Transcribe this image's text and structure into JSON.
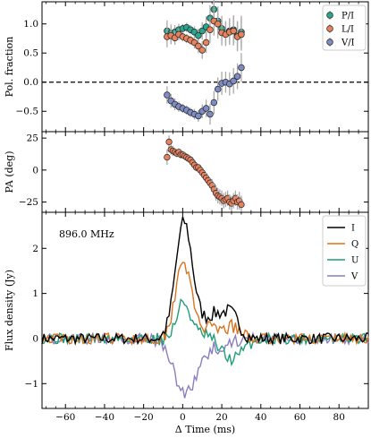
{
  "chart_data": [
    {
      "type": "scatter",
      "panel": "pol_fraction",
      "ylabel": "Pol. fraction",
      "ylim": [
        -0.85,
        1.38
      ],
      "yticks": [
        -0.5,
        0.0,
        0.5,
        1.0
      ],
      "ytick_labels": [
        "−0.5",
        "0.0",
        "0.5",
        "1.0"
      ],
      "xlim": [
        -72,
        95
      ],
      "zero_line": "dashed",
      "legend_position": "top-right",
      "series": [
        {
          "name": "P/I",
          "color": "#2ca58d",
          "x": [
            -8,
            -6,
            -4,
            -2,
            0,
            2,
            4,
            6,
            8,
            10,
            12,
            14,
            16,
            18,
            20,
            22,
            24,
            26,
            28,
            30
          ],
          "y": [
            0.88,
            0.84,
            0.86,
            0.9,
            0.92,
            0.94,
            0.9,
            0.86,
            0.8,
            0.88,
            0.95,
            1.1,
            1.25,
            1.05,
            0.92,
            0.85,
            0.88,
            0.9,
            0.8,
            0.86
          ],
          "err": [
            0.18,
            0.15,
            0.12,
            0.1,
            0.08,
            0.08,
            0.08,
            0.1,
            0.12,
            0.15,
            0.18,
            0.22,
            0.25,
            0.25,
            0.22,
            0.2,
            0.22,
            0.25,
            0.25,
            0.28
          ]
        },
        {
          "name": "L/I",
          "color": "#e8825e",
          "x": [
            -8,
            -6,
            -4,
            -2,
            0,
            2,
            4,
            6,
            8,
            10,
            12,
            14,
            16,
            18,
            20,
            22,
            24,
            26,
            28,
            30
          ],
          "y": [
            0.78,
            0.8,
            0.76,
            0.82,
            0.78,
            0.75,
            0.72,
            0.68,
            0.62,
            0.55,
            0.68,
            0.9,
            1.05,
            1.0,
            0.85,
            0.82,
            0.86,
            0.88,
            0.78,
            0.82
          ],
          "err": [
            0.18,
            0.15,
            0.12,
            0.1,
            0.08,
            0.08,
            0.08,
            0.1,
            0.12,
            0.15,
            0.18,
            0.22,
            0.25,
            0.25,
            0.22,
            0.2,
            0.22,
            0.25,
            0.25,
            0.28
          ]
        },
        {
          "name": "V/I",
          "color": "#7d8cc4",
          "x": [
            -8,
            -6,
            -4,
            -2,
            0,
            2,
            4,
            6,
            8,
            10,
            12,
            14,
            16,
            18,
            20,
            22,
            24,
            26,
            28,
            30
          ],
          "y": [
            -0.22,
            -0.32,
            -0.38,
            -0.42,
            -0.45,
            -0.48,
            -0.52,
            -0.55,
            -0.58,
            -0.5,
            -0.45,
            -0.55,
            -0.35,
            -0.12,
            -0.02,
            0.0,
            -0.03,
            0.02,
            0.1,
            0.25
          ],
          "err": [
            0.15,
            0.12,
            0.1,
            0.09,
            0.08,
            0.08,
            0.08,
            0.09,
            0.1,
            0.12,
            0.15,
            0.18,
            0.2,
            0.2,
            0.2,
            0.18,
            0.2,
            0.22,
            0.22,
            0.25
          ]
        }
      ]
    },
    {
      "type": "scatter",
      "panel": "position_angle",
      "ylabel": "PA (deg)",
      "ylim": [
        -33,
        30
      ],
      "yticks": [
        -25,
        0,
        25
      ],
      "ytick_labels": [
        "−25",
        "0",
        "25"
      ],
      "xlim": [
        -72,
        95
      ],
      "series": [
        {
          "name": "PA",
          "color": "#e8825e",
          "x": [
            -8,
            -7,
            -6,
            -5,
            -4,
            -3,
            -2,
            -1,
            0,
            1,
            2,
            3,
            4,
            5,
            6,
            7,
            8,
            9,
            10,
            11,
            12,
            13,
            14,
            15,
            16,
            17,
            18,
            19,
            20,
            21,
            22,
            23,
            24,
            25,
            26,
            27,
            28,
            29,
            30
          ],
          "y": [
            10,
            22,
            16,
            15,
            14,
            13,
            14,
            12,
            12,
            11,
            10,
            9,
            8,
            6,
            4,
            2,
            2,
            0,
            -2,
            -4,
            -6,
            -8,
            -10,
            -12,
            -15,
            -18,
            -20,
            -21,
            -22,
            -24,
            -23,
            -22,
            -25,
            -26,
            -24,
            -22,
            -25,
            -24,
            -27
          ],
          "err": [
            6,
            5,
            4,
            4,
            3,
            3,
            3,
            3,
            3,
            3,
            3,
            3,
            3,
            3,
            3,
            3,
            3,
            3,
            3,
            3,
            4,
            4,
            4,
            5,
            5,
            6,
            6,
            6,
            6,
            6,
            6,
            6,
            6,
            6,
            6,
            6,
            6,
            7,
            7
          ]
        }
      ]
    },
    {
      "type": "line",
      "panel": "flux_density",
      "ylabel": "Flux density (Jy)",
      "xlabel": "Δ Time (ms)",
      "annotation": "896.0 MHz",
      "ylim": [
        -1.55,
        2.8
      ],
      "yticks": [
        -1,
        0,
        1,
        2
      ],
      "ytick_labels": [
        "−1",
        "0",
        "1",
        "2"
      ],
      "xlim": [
        -72,
        95
      ],
      "xticks": [
        -60,
        -40,
        -20,
        0,
        20,
        40,
        60,
        80
      ],
      "xtick_labels": [
        "−60",
        "−40",
        "−20",
        "0",
        "20",
        "40",
        "60",
        "80"
      ],
      "legend_position": "top-right",
      "series": [
        {
          "name": "I",
          "color": "#000000"
        },
        {
          "name": "Q",
          "color": "#d9741f"
        },
        {
          "name": "U",
          "color": "#1f9e78"
        },
        {
          "name": "V",
          "color": "#8a7ec0"
        }
      ]
    }
  ]
}
